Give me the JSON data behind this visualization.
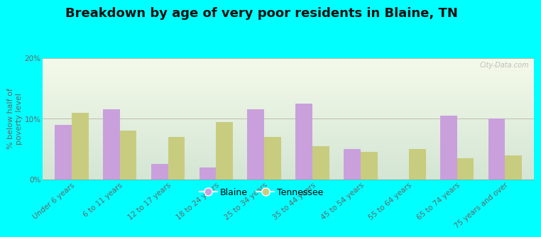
{
  "title": "Breakdown by age of very poor residents in Blaine, TN",
  "ylabel": "% below half of\npoverty level",
  "categories": [
    "Under 6 years",
    "6 to 11 years",
    "12 to 17 years",
    "18 to 24 years",
    "25 to 34 years",
    "35 to 44 years",
    "45 to 54 years",
    "55 to 64 years",
    "65 to 74 years",
    "75 years and over"
  ],
  "blaine_values": [
    9.0,
    11.5,
    2.5,
    2.0,
    11.5,
    12.5,
    5.0,
    0.0,
    10.5,
    10.0
  ],
  "tennessee_values": [
    11.0,
    8.0,
    7.0,
    9.5,
    7.0,
    5.5,
    4.5,
    5.0,
    3.5,
    4.0
  ],
  "blaine_color": "#c9a0dc",
  "tennessee_color": "#c8cc7e",
  "background_outer": "#00ffff",
  "title_fontsize": 13,
  "ylabel_fontsize": 8,
  "tick_fontsize": 7.5,
  "ylim": [
    0,
    20
  ],
  "yticks": [
    0,
    10,
    20
  ],
  "ytick_labels": [
    "0%",
    "10%",
    "20%"
  ],
  "legend_blaine": "Blaine",
  "legend_tennessee": "Tennessee",
  "bar_width": 0.35,
  "watermark": "City-Data.com"
}
